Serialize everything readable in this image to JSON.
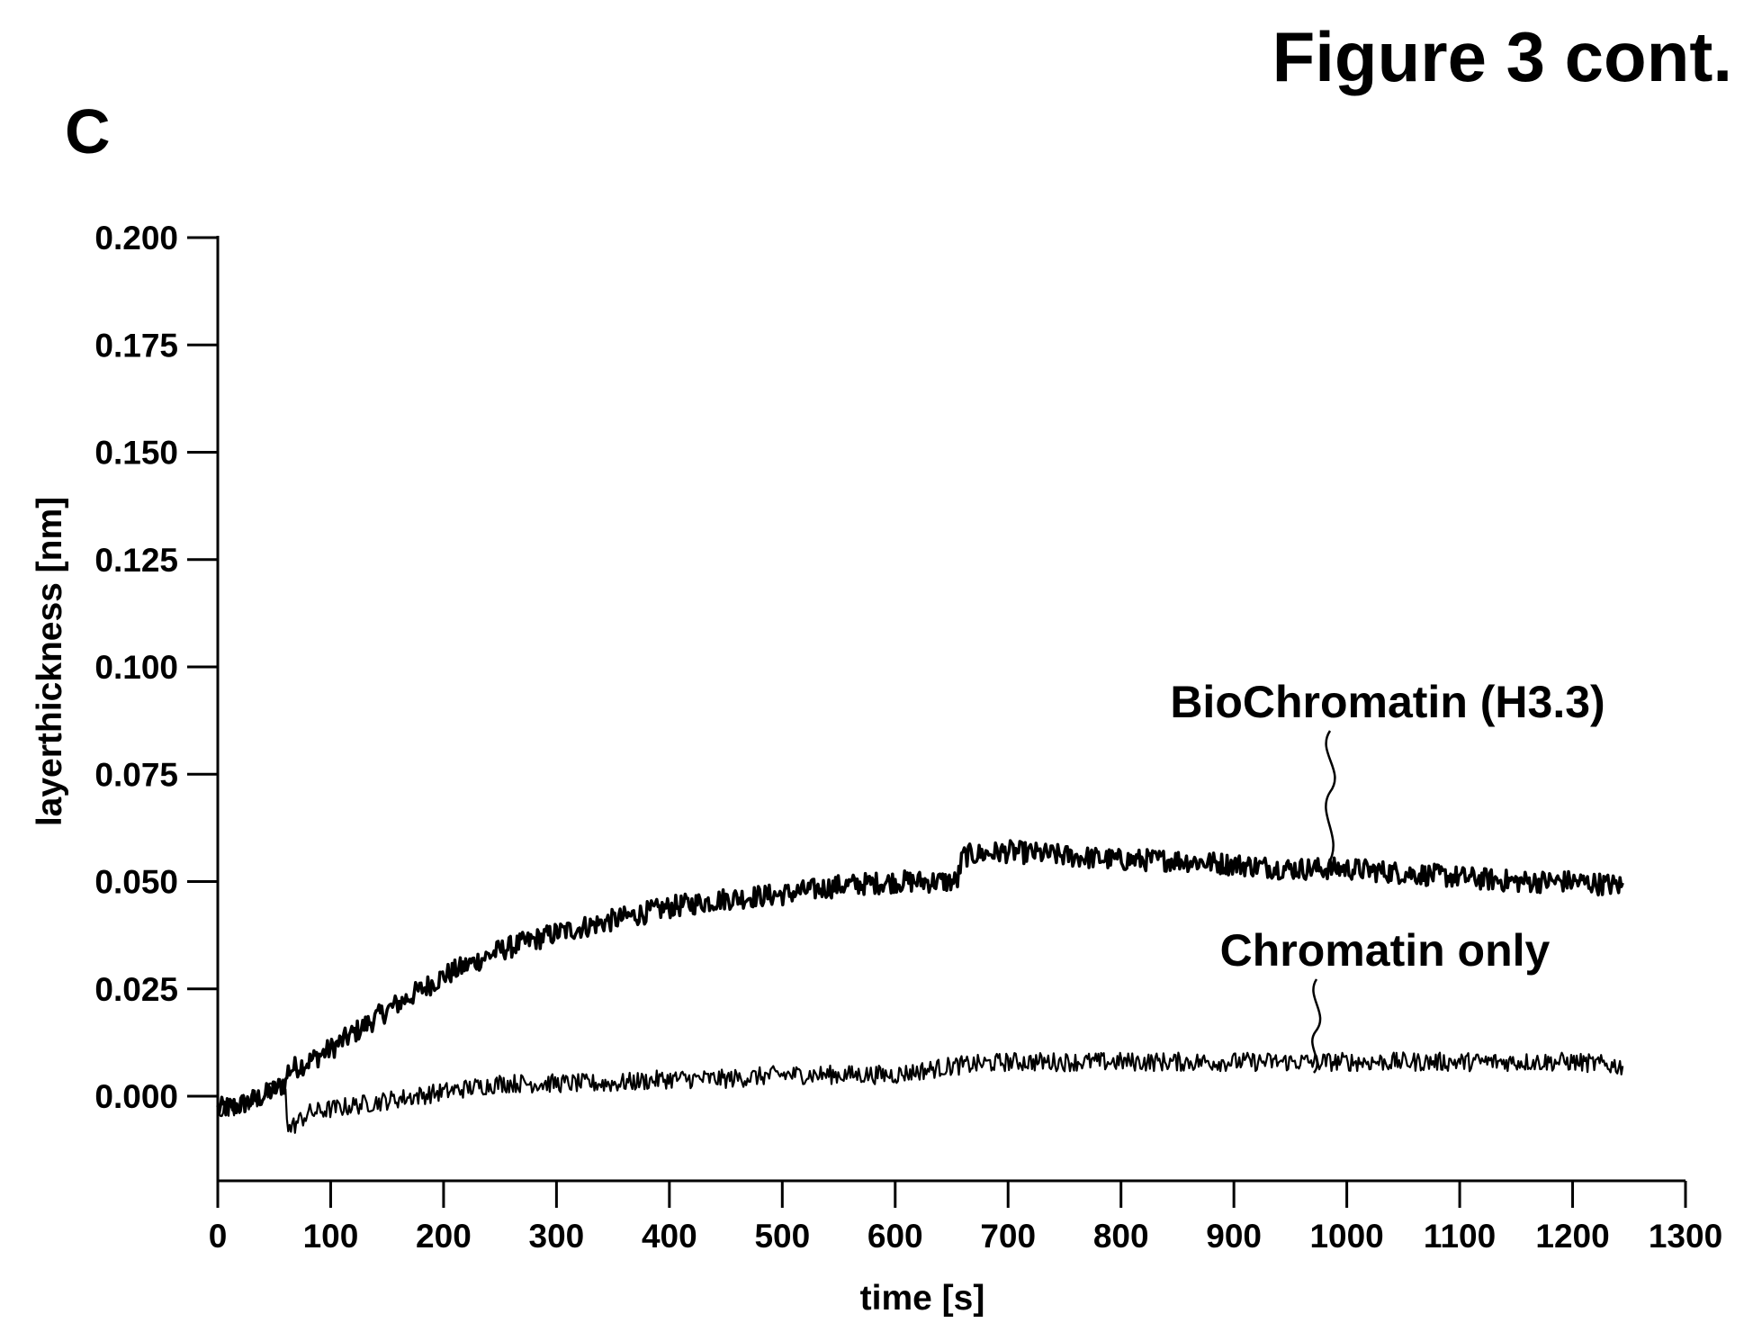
{
  "figure": {
    "title": "Figure 3 cont.",
    "panel_label": "C"
  },
  "chart_data": {
    "type": "line",
    "title": "",
    "xlabel": "time [s]",
    "ylabel": "layerthickness [nm]",
    "xlim": [
      0,
      1300
    ],
    "ylim": [
      -0.015,
      0.2
    ],
    "x_ticks": [
      0,
      100,
      200,
      300,
      400,
      500,
      600,
      700,
      800,
      900,
      1000,
      1100,
      1200,
      1300
    ],
    "x_tick_labels": [
      "0",
      "100",
      "200",
      "300",
      "400",
      "500",
      "600",
      "700",
      "800",
      "900",
      "1000",
      "1100",
      "1200",
      "1300"
    ],
    "y_ticks": [
      0.0,
      0.025,
      0.05,
      0.075,
      0.1,
      0.125,
      0.15,
      0.175,
      0.2
    ],
    "y_tick_labels": [
      "0.000",
      "0.025",
      "0.050",
      "0.075",
      "0.100",
      "0.125",
      "0.150",
      "0.175",
      "0.200"
    ],
    "grid": false,
    "series": [
      {
        "name": "BioChromatin (H3.3)",
        "x": [
          0,
          20,
          40,
          60,
          62,
          80,
          100,
          150,
          200,
          250,
          300,
          350,
          400,
          450,
          500,
          550,
          600,
          655,
          660,
          700,
          750,
          800,
          850,
          900,
          950,
          1000,
          1050,
          1100,
          1150,
          1200,
          1245
        ],
        "y": [
          -0.003,
          -0.002,
          0.0,
          0.003,
          0.006,
          0.008,
          0.011,
          0.02,
          0.028,
          0.034,
          0.038,
          0.041,
          0.044,
          0.046,
          0.047,
          0.049,
          0.05,
          0.05,
          0.056,
          0.057,
          0.056,
          0.055,
          0.055,
          0.054,
          0.053,
          0.053,
          0.052,
          0.051,
          0.05,
          0.05,
          0.049
        ]
      },
      {
        "name": "Chromatin only",
        "x": [
          0,
          20,
          40,
          60,
          62,
          80,
          100,
          150,
          200,
          250,
          300,
          350,
          400,
          450,
          500,
          550,
          600,
          650,
          700,
          750,
          800,
          850,
          900,
          950,
          1000,
          1050,
          1100,
          1150,
          1200,
          1245
        ],
        "y": [
          -0.003,
          -0.002,
          0.0,
          0.003,
          -0.008,
          -0.004,
          -0.003,
          -0.001,
          0.001,
          0.003,
          0.003,
          0.003,
          0.004,
          0.004,
          0.005,
          0.005,
          0.005,
          0.007,
          0.008,
          0.008,
          0.008,
          0.008,
          0.008,
          0.008,
          0.008,
          0.008,
          0.008,
          0.008,
          0.008,
          0.007
        ]
      }
    ]
  }
}
